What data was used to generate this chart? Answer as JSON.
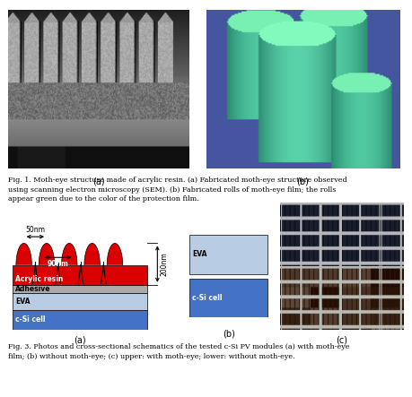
{
  "fig_width": 4.59,
  "fig_height": 4.43,
  "dpi": 100,
  "bg_color": "#ffffff",
  "caption1": "Fig. 1. Moth-eye structure made of acrylic resin. (a) Fabricated moth-eye structure observed\nusing scanning electron microscopy (SEM). (b) Fabricated rolls of moth-eye film; the rolls\nappear green due to the color of the protection film.",
  "caption2": "Fig. 3. Photos and cross-sectional schematics of the tested c-Si PV modules (a) with moth-eye\nfilm; (b) without moth-eye; (c) upper: with moth-eye; lower: without moth-eye.",
  "label_a": "(a)",
  "label_b": "(b)",
  "label_c": "(c)",
  "acrylic_color": "#dd0000",
  "adhesive_color": "#aaaaaa",
  "eva_color": "#b8cce4",
  "csi_color": "#4472c4",
  "diagram_label_acrylic": "Acrylic resin",
  "diagram_label_adhesive": "Adhesive",
  "diagram_label_eva": "EVA",
  "diagram_label_csi": "c-Si cell",
  "dim_50nm": "50nm",
  "dim_90nm": "90nm",
  "dim_200nm": "200nm"
}
